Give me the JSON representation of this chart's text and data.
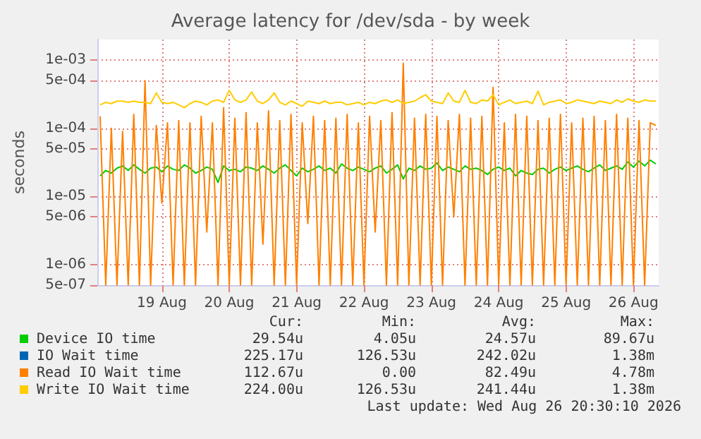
{
  "chart_data": {
    "type": "line",
    "title": "Average latency for /dev/sda - by week",
    "ylabel": "seconds",
    "log": "y",
    "grid": true,
    "legend": "bottom",
    "marker": "none",
    "line_style": "solid",
    "xlim": [
      "2026-08-18T01:00",
      "2026-08-26T09:00"
    ],
    "xticks": [
      {
        "value": "2026-08-19",
        "label": "19 Aug"
      },
      {
        "value": "2026-08-20",
        "label": "20 Aug"
      },
      {
        "value": "2026-08-21",
        "label": "21 Aug"
      },
      {
        "value": "2026-08-22",
        "label": "22 Aug"
      },
      {
        "value": "2026-08-23",
        "label": "23 Aug"
      },
      {
        "value": "2026-08-24",
        "label": "24 Aug"
      },
      {
        "value": "2026-08-25",
        "label": "25 Aug"
      },
      {
        "value": "2026-08-26",
        "label": "26 Aug"
      }
    ],
    "ylim": [
      5e-07,
      0.002
    ],
    "yticks": [
      {
        "value": 5e-07,
        "label": "5e-07"
      },
      {
        "value": 1e-06,
        "label": "1e-06"
      },
      {
        "value": 5e-06,
        "label": "5e-06"
      },
      {
        "value": 1e-05,
        "label": "1e-05"
      },
      {
        "value": 5e-05,
        "label": "5e-05"
      },
      {
        "value": 0.0001,
        "label": "1e-04"
      },
      {
        "value": 0.0005,
        "label": "5e-04"
      },
      {
        "value": 0.001,
        "label": "1e-03"
      }
    ],
    "x": [
      "2026-08-18T02:00",
      "2026-08-18T04:00",
      "2026-08-18T06:00",
      "2026-08-18T08:00",
      "2026-08-18T10:00",
      "2026-08-18T12:00",
      "2026-08-18T14:00",
      "2026-08-18T16:00",
      "2026-08-18T18:00",
      "2026-08-18T20:00",
      "2026-08-18T22:00",
      "2026-08-19T00:00",
      "2026-08-19T02:00",
      "2026-08-19T04:00",
      "2026-08-19T06:00",
      "2026-08-19T08:00",
      "2026-08-19T10:00",
      "2026-08-19T12:00",
      "2026-08-19T14:00",
      "2026-08-19T16:00",
      "2026-08-19T18:00",
      "2026-08-19T20:00",
      "2026-08-19T22:00",
      "2026-08-20T00:00",
      "2026-08-20T02:00",
      "2026-08-20T04:00",
      "2026-08-20T06:00",
      "2026-08-20T08:00",
      "2026-08-20T10:00",
      "2026-08-20T12:00",
      "2026-08-20T14:00",
      "2026-08-20T16:00",
      "2026-08-20T18:00",
      "2026-08-20T20:00",
      "2026-08-20T22:00",
      "2026-08-21T00:00",
      "2026-08-21T02:00",
      "2026-08-21T04:00",
      "2026-08-21T06:00",
      "2026-08-21T08:00",
      "2026-08-21T10:00",
      "2026-08-21T12:00",
      "2026-08-21T14:00",
      "2026-08-21T16:00",
      "2026-08-21T18:00",
      "2026-08-21T20:00",
      "2026-08-21T22:00",
      "2026-08-22T00:00",
      "2026-08-22T02:00",
      "2026-08-22T04:00",
      "2026-08-22T06:00",
      "2026-08-22T08:00",
      "2026-08-22T10:00",
      "2026-08-22T12:00",
      "2026-08-22T14:00",
      "2026-08-22T16:00",
      "2026-08-22T18:00",
      "2026-08-22T20:00",
      "2026-08-22T22:00",
      "2026-08-23T00:00",
      "2026-08-23T02:00",
      "2026-08-23T04:00",
      "2026-08-23T06:00",
      "2026-08-23T08:00",
      "2026-08-23T10:00",
      "2026-08-23T12:00",
      "2026-08-23T14:00",
      "2026-08-23T16:00",
      "2026-08-23T18:00",
      "2026-08-23T20:00",
      "2026-08-23T22:00",
      "2026-08-24T00:00",
      "2026-08-24T02:00",
      "2026-08-24T04:00",
      "2026-08-24T06:00",
      "2026-08-24T08:00",
      "2026-08-24T10:00",
      "2026-08-24T12:00",
      "2026-08-24T14:00",
      "2026-08-24T16:00",
      "2026-08-24T18:00",
      "2026-08-24T20:00",
      "2026-08-24T22:00",
      "2026-08-25T00:00",
      "2026-08-25T02:00",
      "2026-08-25T04:00",
      "2026-08-25T06:00",
      "2026-08-25T08:00",
      "2026-08-25T10:00",
      "2026-08-25T12:00",
      "2026-08-25T14:00",
      "2026-08-25T16:00",
      "2026-08-25T18:00",
      "2026-08-25T20:00",
      "2026-08-25T22:00",
      "2026-08-26T00:00",
      "2026-08-26T02:00",
      "2026-08-26T04:00",
      "2026-08-26T06:00",
      "2026-08-26T08:00"
    ],
    "series": [
      {
        "name": "Device IO time",
        "color": "#00cc00",
        "values": [
          2e-05,
          2.4e-05,
          2.2e-05,
          2.6e-05,
          2.8e-05,
          2.4e-05,
          2.9e-05,
          2.5e-05,
          2.2e-05,
          2.6e-05,
          2.7e-05,
          2.3e-05,
          2.8e-05,
          2.5e-05,
          2.4e-05,
          2.9e-05,
          2.6e-05,
          2.2e-05,
          2.4e-05,
          2.7e-05,
          2.5e-05,
          1.6e-05,
          2.8e-05,
          2.4e-05,
          2.5e-05,
          2.3e-05,
          2.7e-05,
          2.6e-05,
          2.4e-05,
          2.8e-05,
          2.5e-05,
          2.2e-05,
          2.6e-05,
          2.9e-05,
          2.4e-05,
          2e-05,
          2.6e-05,
          2.3e-05,
          2.5e-05,
          2.8e-05,
          2.4e-05,
          2.6e-05,
          2.2e-05,
          3e-05,
          2.6e-05,
          2.4e-05,
          2.7e-05,
          2.5e-05,
          2.3e-05,
          2.6e-05,
          2.8e-05,
          2.2e-05,
          2.5e-05,
          2.9e-05,
          1.8e-05,
          2.6e-05,
          2.4e-05,
          2.8e-05,
          2.5e-05,
          2.6e-05,
          3.1e-05,
          2.4e-05,
          2.7e-05,
          2.5e-05,
          2.3e-05,
          2.8e-05,
          2.5e-05,
          2.6e-05,
          2.4e-05,
          2.1e-05,
          2.5e-05,
          2.7e-05,
          2.4e-05,
          2.6e-05,
          2e-05,
          2.4e-05,
          2.2e-05,
          2.1e-05,
          2.5e-05,
          2.6e-05,
          2.2e-05,
          2.5e-05,
          2.7e-05,
          2.4e-05,
          2.6e-05,
          2.8e-05,
          2.5e-05,
          2.3e-05,
          2.6e-05,
          2.9e-05,
          2.4e-05,
          2.6e-05,
          2.8e-05,
          2.5e-05,
          3.2e-05,
          2.7e-05,
          3.3e-05,
          2.8e-05,
          3.4e-05,
          3e-05
        ]
      },
      {
        "name": "IO Wait time",
        "color": "#0066b3",
        "values": [
          null,
          null,
          null,
          null,
          null,
          null,
          null,
          null,
          null,
          null,
          null,
          null,
          null,
          null,
          null,
          null,
          null,
          null,
          null,
          null,
          null,
          null,
          null,
          null,
          null,
          null,
          null,
          null,
          null,
          null,
          null,
          null,
          null,
          null,
          null,
          null,
          null,
          null,
          null,
          null,
          null,
          null,
          null,
          null,
          null,
          null,
          null,
          null,
          null,
          null,
          null,
          null,
          null,
          null,
          null,
          null,
          null,
          null,
          null,
          null,
          null,
          null,
          null,
          null,
          null,
          null,
          null,
          null,
          null,
          null,
          null,
          null,
          null,
          null,
          null,
          null,
          null,
          null,
          null,
          null,
          null,
          null,
          null,
          null,
          null,
          null,
          null,
          null,
          null,
          null,
          null,
          null,
          null,
          null,
          null,
          null,
          null,
          null,
          null,
          null
        ]
      },
      {
        "name": "Read IO Wait time",
        "color": "#ff8000",
        "values": [
          0.00015,
          5e-07,
          0.0001,
          5e-07,
          9e-05,
          5e-07,
          0.00016,
          5e-07,
          0.0005,
          5e-07,
          0.00011,
          8e-06,
          0.00012,
          5e-07,
          0.00013,
          5e-07,
          0.00012,
          5e-07,
          0.00015,
          3e-06,
          0.00012,
          5e-07,
          0.0002,
          5e-07,
          0.00014,
          5e-07,
          0.00017,
          5e-07,
          0.00012,
          2e-06,
          0.00018,
          5e-07,
          0.00013,
          5e-07,
          0.00016,
          5e-07,
          0.00012,
          4e-06,
          0.00015,
          5e-07,
          0.00013,
          5e-07,
          0.00014,
          5e-07,
          0.00016,
          5e-07,
          0.00012,
          5e-07,
          0.00015,
          3e-06,
          0.00013,
          5e-07,
          0.00017,
          5e-07,
          0.0009,
          5e-07,
          0.00014,
          5e-07,
          0.00016,
          5e-07,
          0.00015,
          5e-07,
          0.00013,
          5e-06,
          0.00016,
          5e-07,
          0.00014,
          5e-07,
          0.00015,
          5e-07,
          0.0004,
          5e-07,
          0.00012,
          5e-07,
          0.00016,
          5e-07,
          0.00015,
          5e-07,
          0.00013,
          5e-07,
          0.00014,
          5e-07,
          0.00016,
          5e-07,
          0.00012,
          5e-07,
          0.00014,
          5e-07,
          0.00015,
          5e-07,
          0.00013,
          5e-07,
          0.00016,
          5e-07,
          0.00014,
          5e-07,
          0.00013,
          5e-07,
          0.00012,
          0.00011
        ]
      },
      {
        "name": "Write IO Wait time",
        "color": "#ffcc00",
        "values": [
          0.00022,
          0.00024,
          0.00023,
          0.00025,
          0.00025,
          0.00024,
          0.00025,
          0.00024,
          0.00024,
          0.00023,
          0.00033,
          0.00024,
          0.00023,
          0.00024,
          0.00022,
          0.0002,
          0.00023,
          0.00025,
          0.00024,
          0.00022,
          0.00025,
          0.00026,
          0.00024,
          0.00036,
          0.00026,
          0.00024,
          0.00026,
          0.00034,
          0.00025,
          0.00023,
          0.00026,
          0.00033,
          0.00024,
          0.00022,
          0.00025,
          0.00023,
          0.00021,
          0.00025,
          0.00024,
          0.00023,
          0.00025,
          0.00023,
          0.00024,
          0.00024,
          0.00022,
          0.00023,
          0.00024,
          0.00022,
          0.00024,
          0.00023,
          0.00025,
          0.00026,
          0.00024,
          0.00026,
          0.00023,
          0.00024,
          0.00025,
          0.00028,
          0.00031,
          0.00025,
          0.00024,
          0.00023,
          0.00033,
          0.00025,
          0.00024,
          0.00036,
          0.00024,
          0.00023,
          0.00026,
          0.00025,
          0.00031,
          0.00022,
          0.00024,
          0.00026,
          0.00023,
          0.00024,
          0.00025,
          0.00023,
          0.00035,
          0.00022,
          0.00024,
          0.00025,
          0.00026,
          0.00023,
          0.00024,
          0.00026,
          0.00025,
          0.00024,
          0.00023,
          0.00025,
          0.00024,
          0.00023,
          0.00026,
          0.00024,
          0.00027,
          0.00025,
          0.00024,
          0.00026,
          0.00025,
          0.00025
        ]
      }
    ],
    "annotations": [
      "Cur:",
      "Min:",
      "Avg:",
      "Max:",
      "29.54u",
      "4.05u",
      "24.57u",
      "89.67u",
      "225.17u",
      "126.53u",
      "242.02u",
      "1.38m",
      "112.67u",
      "0.00",
      "82.49u",
      "4.78m",
      "224.00u",
      "126.53u",
      "241.44u",
      "1.38m",
      "Last update: Wed Aug 26 20:30:10 2026"
    ]
  }
}
